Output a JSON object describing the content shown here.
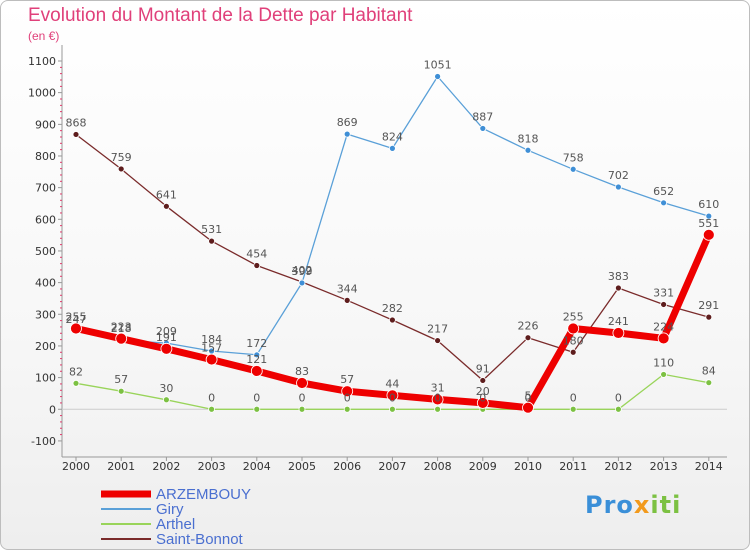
{
  "header": {
    "title": "Evolution du Montant de la Dette par Habitant",
    "subtitle": "(en €)"
  },
  "logo": {
    "text_a": "Pro",
    "text_b": "x",
    "text_c": "iti"
  },
  "colors": {
    "ARZEMBOUY": "#ee0000",
    "Giry": "#5aa0d8",
    "Arthel": "#99d45a",
    "Saint-Bonnot": "#7a2b2b",
    "legend_text": "#4a6fd0"
  },
  "chart_data": {
    "type": "line",
    "x": [
      2000,
      2001,
      2002,
      2003,
      2004,
      2005,
      2006,
      2007,
      2008,
      2009,
      2010,
      2011,
      2012,
      2013,
      2014
    ],
    "ylim": [
      -100,
      1100
    ],
    "yticks": [
      -100,
      0,
      100,
      200,
      300,
      400,
      500,
      600,
      700,
      800,
      900,
      1000,
      1100
    ],
    "grid": false,
    "legend_position": "bottom-left",
    "series": [
      {
        "name": "ARZEMBOUY",
        "values": [
          255,
          223,
          191,
          157,
          121,
          83,
          57,
          44,
          31,
          20,
          5,
          255,
          241,
          224,
          551
        ]
      },
      {
        "name": "Giry",
        "values": [
          247,
          218,
          209,
          184,
          172,
          399,
          869,
          824,
          1051,
          887,
          818,
          758,
          702,
          652,
          610
        ]
      },
      {
        "name": "Arthel",
        "values": [
          82,
          57,
          30,
          0,
          0,
          0,
          0,
          0,
          0,
          0,
          0,
          0,
          0,
          110,
          84
        ]
      },
      {
        "name": "Saint-Bonnot",
        "values": [
          868,
          759,
          641,
          531,
          454,
          402,
          344,
          282,
          217,
          91,
          226,
          180,
          383,
          331,
          291
        ]
      }
    ]
  }
}
